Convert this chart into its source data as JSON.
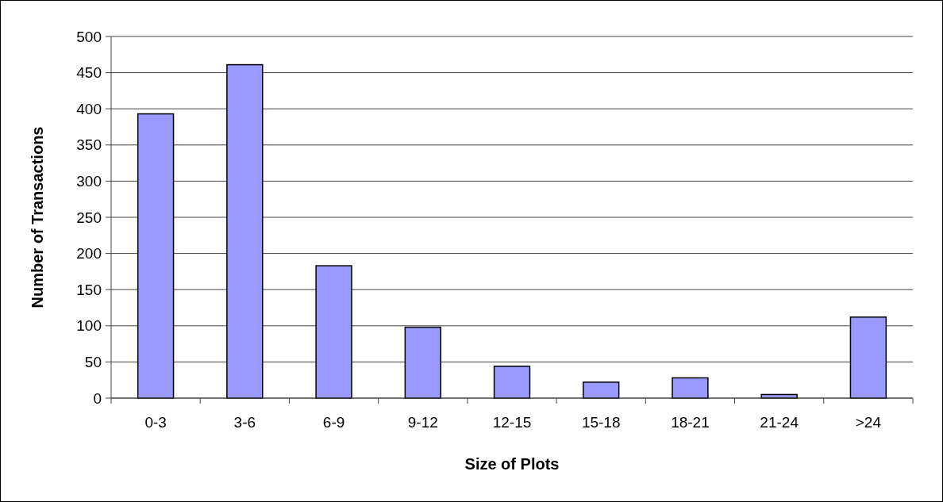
{
  "chart_data": {
    "type": "bar",
    "xlabel": "Size of Plots",
    "ylabel": "Number of Transactions",
    "categories": [
      "0-3",
      "3-6",
      "6-9",
      "9-12",
      "12-15",
      "15-18",
      "18-21",
      "21-24",
      ">24"
    ],
    "values": [
      393,
      461,
      183,
      98,
      44,
      22,
      28,
      5,
      112
    ],
    "color": "#9999ff",
    "ylim": [
      0,
      500
    ],
    "yticks": [
      0,
      50,
      100,
      150,
      200,
      250,
      300,
      350,
      400,
      450,
      500
    ],
    "grid": "y"
  }
}
